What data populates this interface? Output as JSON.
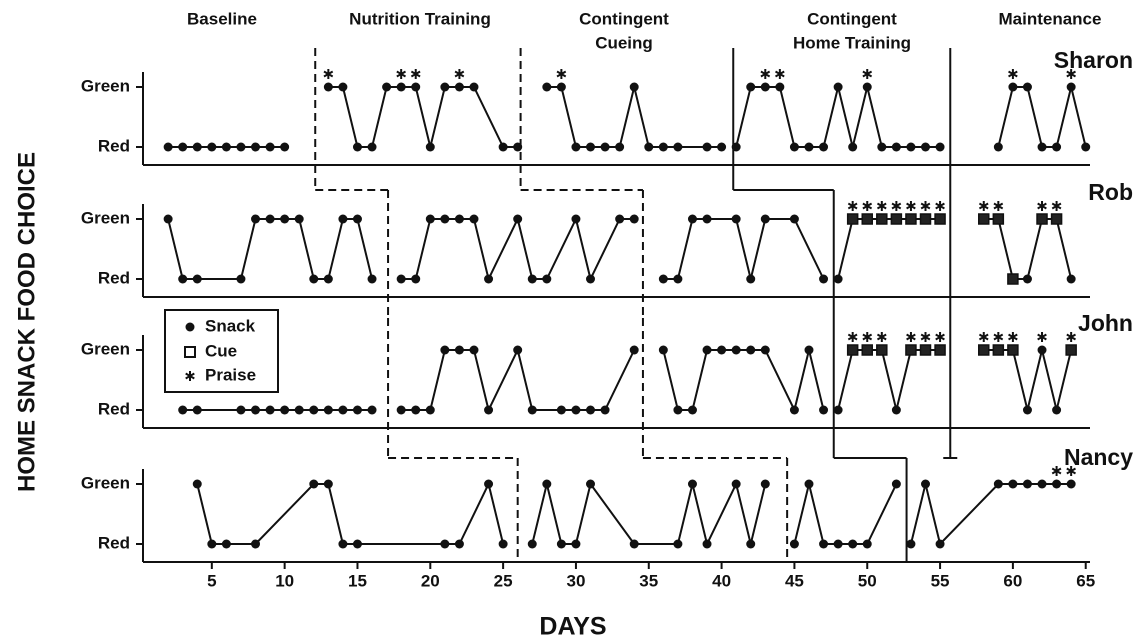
{
  "chart_data": {
    "type": "line",
    "ylabel": "HOME SNACK FOOD CHOICE",
    "xlabel": "DAYS",
    "phases": [
      [
        "Baseline"
      ],
      [
        "Nutrition Training"
      ],
      [
        "Contingent",
        "Cueing"
      ],
      [
        "Contingent",
        "Home Training"
      ],
      [
        "Maintenance"
      ]
    ],
    "legend": [
      "Snack",
      "Cue",
      "Praise"
    ],
    "xlim": [
      0,
      65.5
    ],
    "xticks": [
      5,
      10,
      15,
      20,
      25,
      30,
      35,
      40,
      45,
      50,
      55,
      60,
      65
    ],
    "ylim": [
      -0.3,
      1.25
    ],
    "yticks": [
      {
        "value": 1,
        "label": "Green"
      },
      {
        "value": 0,
        "label": "Red"
      }
    ],
    "panels": [
      {
        "name": "Sharon",
        "x": [
          2,
          3,
          4,
          5,
          6,
          7,
          8,
          9,
          10,
          13,
          14,
          15,
          16,
          17,
          18,
          19,
          20,
          21,
          22,
          23,
          25,
          26,
          28,
          29,
          30,
          31,
          32,
          33,
          34,
          35,
          36,
          37,
          39,
          40,
          41,
          42,
          43,
          44,
          45,
          46,
          47,
          48,
          49,
          50,
          51,
          52,
          53,
          54,
          55,
          59,
          60,
          61,
          62,
          63,
          64,
          65
        ],
        "values": [
          0,
          0,
          0,
          0,
          0,
          0,
          0,
          0,
          0,
          1,
          1,
          0,
          0,
          1,
          1,
          1,
          0,
          1,
          1,
          1,
          0,
          0,
          1,
          1,
          0,
          0,
          0,
          0,
          1,
          0,
          0,
          0,
          0,
          0,
          0,
          1,
          1,
          1,
          0,
          0,
          0,
          1,
          0,
          1,
          0,
          0,
          0,
          0,
          0,
          0,
          1,
          1,
          0,
          0,
          1,
          0
        ],
        "cue": [],
        "praise": [
          13,
          18,
          19,
          22,
          29,
          43,
          44,
          50,
          60,
          64
        ],
        "phase_days": [
          12.1,
          26.2,
          40.8,
          55.7
        ]
      },
      {
        "name": "Rob",
        "x": [
          2,
          3,
          4,
          7,
          8,
          9,
          10,
          11,
          12,
          13,
          14,
          15,
          16,
          18,
          19,
          20,
          21,
          22,
          23,
          24,
          26,
          27,
          28,
          30,
          31,
          33,
          34,
          36,
          37,
          38,
          39,
          41,
          42,
          43,
          45,
          47,
          48,
          49,
          50,
          51,
          52,
          53,
          54,
          55,
          58,
          59,
          60,
          61,
          62,
          63,
          64
        ],
        "values": [
          1,
          0,
          0,
          0,
          1,
          1,
          1,
          1,
          0,
          0,
          1,
          1,
          0,
          0,
          0,
          1,
          1,
          1,
          1,
          0,
          1,
          0,
          0,
          1,
          0,
          1,
          1,
          0,
          0,
          1,
          1,
          1,
          0,
          1,
          1,
          0,
          0,
          1,
          1,
          1,
          1,
          1,
          1,
          1,
          1,
          1,
          0,
          0,
          1,
          1,
          0
        ],
        "cue": [
          49,
          50,
          51,
          52,
          53,
          54,
          55,
          58,
          59,
          60,
          62,
          63
        ],
        "praise": [
          49,
          50,
          51,
          52,
          53,
          54,
          55,
          58,
          59,
          62,
          63
        ],
        "phase_days": [
          17.1,
          34.6,
          47.7,
          55.7
        ]
      },
      {
        "name": "John",
        "x": [
          3,
          4,
          7,
          8,
          9,
          10,
          11,
          12,
          13,
          14,
          15,
          16,
          18,
          19,
          20,
          21,
          22,
          23,
          24,
          26,
          27,
          29,
          30,
          31,
          32,
          34,
          36,
          37,
          38,
          39,
          40,
          41,
          42,
          43,
          45,
          46,
          47,
          48,
          49,
          50,
          51,
          52,
          53,
          54,
          55,
          58,
          59,
          60,
          61,
          62,
          63,
          64
        ],
        "values": [
          0,
          0,
          0,
          0,
          0,
          0,
          0,
          0,
          0,
          0,
          0,
          0,
          0,
          0,
          0,
          1,
          1,
          1,
          0,
          1,
          0,
          0,
          0,
          0,
          0,
          1,
          1,
          0,
          0,
          1,
          1,
          1,
          1,
          1,
          0,
          1,
          0,
          0,
          1,
          1,
          1,
          0,
          1,
          1,
          1,
          1,
          1,
          1,
          0,
          1,
          0,
          1
        ],
        "cue": [
          49,
          50,
          51,
          53,
          54,
          55,
          58,
          59,
          60,
          64
        ],
        "praise": [
          49,
          50,
          51,
          53,
          54,
          55,
          58,
          59,
          60,
          62,
          64
        ],
        "phase_days": [
          17.1,
          34.6,
          47.7,
          55.7
        ]
      },
      {
        "name": "Nancy",
        "x": [
          4,
          5,
          6,
          8,
          12,
          13,
          14,
          15,
          21,
          22,
          24,
          25,
          27,
          28,
          29,
          30,
          31,
          34,
          37,
          38,
          39,
          41,
          42,
          43,
          45,
          46,
          47,
          48,
          49,
          50,
          52,
          53,
          54,
          55,
          59,
          60,
          61,
          62,
          63,
          64
        ],
        "values": [
          1,
          0,
          0,
          0,
          1,
          1,
          0,
          0,
          0,
          0,
          1,
          0,
          0,
          1,
          0,
          0,
          1,
          0,
          0,
          1,
          0,
          1,
          0,
          1,
          0,
          1,
          0,
          0,
          0,
          0,
          1,
          0,
          1,
          0,
          1,
          1,
          1,
          1,
          1,
          1
        ],
        "cue": [],
        "praise": [
          63,
          64
        ],
        "phase_days": [
          26,
          44.5,
          52.7
        ]
      }
    ]
  }
}
